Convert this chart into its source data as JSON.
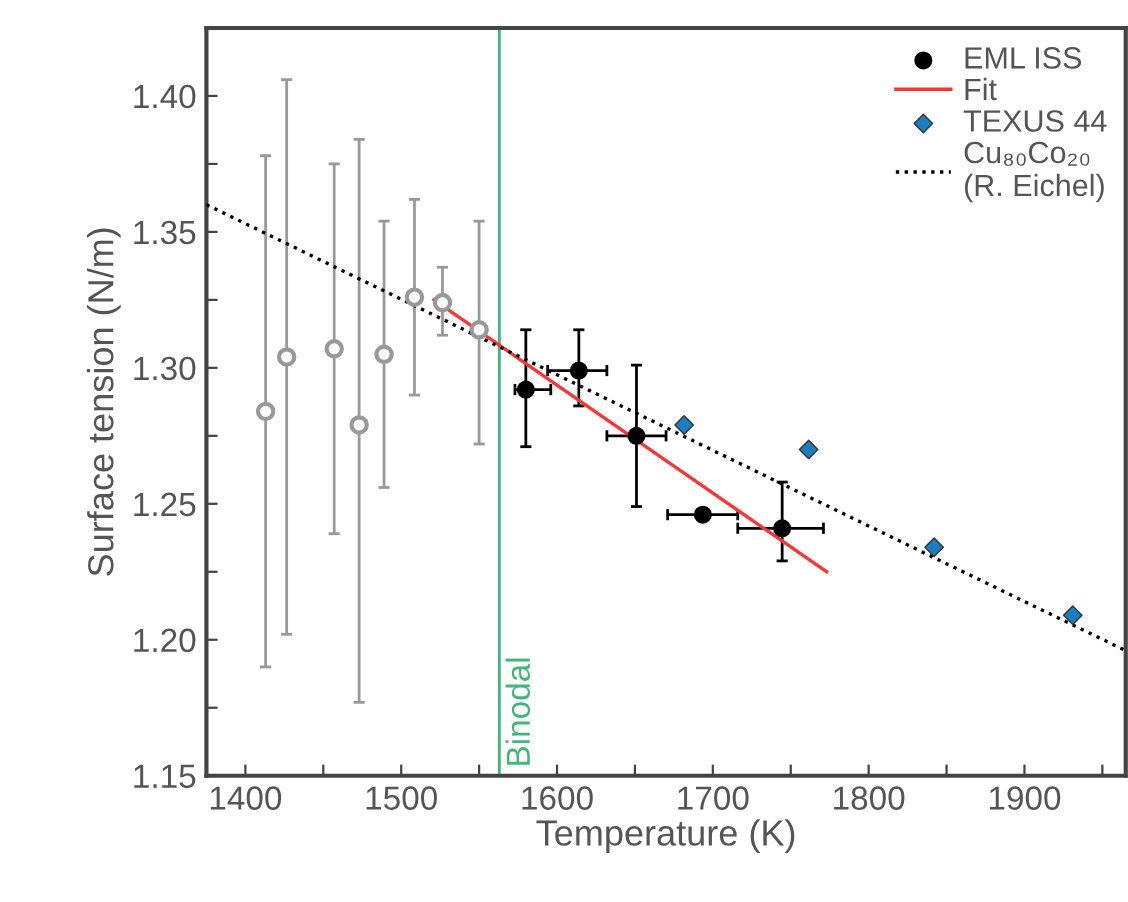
{
  "chart_data": {
    "type": "scatter",
    "xlabel": "Temperature (K)",
    "ylabel": "Surface tension (N/m)",
    "xlim": [
      1375,
      1965
    ],
    "xticks": [
      1400,
      {
        "value": 1450,
        "label": null
      },
      1500,
      {
        "value": 1550,
        "label": null
      },
      1600,
      {
        "value": 1650,
        "label": null
      },
      1700,
      {
        "value": 1750,
        "label": null
      },
      1800,
      {
        "value": 1850,
        "label": null
      },
      1900,
      {
        "value": 1950,
        "label": null
      }
    ],
    "ylim": [
      1.15,
      1.425
    ],
    "yticks": [
      {
        "value": 1.15,
        "label": "1.15"
      },
      {
        "value": 1.175,
        "label": null
      },
      {
        "value": 1.2,
        "label": "1.20"
      },
      {
        "value": 1.225,
        "label": null
      },
      {
        "value": 1.25,
        "label": "1.25"
      },
      {
        "value": 1.275,
        "label": null
      },
      {
        "value": 1.3,
        "label": "1.30"
      },
      {
        "value": 1.325,
        "label": null
      },
      {
        "value": 1.35,
        "label": "1.35"
      },
      {
        "value": 1.375,
        "label": null
      },
      {
        "value": 1.4,
        "label": "1.40"
      },
      {
        "value": 1.425,
        "label": null
      }
    ],
    "grid": false,
    "legend": "top right",
    "marker": "circle",
    "ref_lines": [
      {
        "axis": "x",
        "value": 1563,
        "label": "Binodal",
        "color": "#3cb878"
      }
    ],
    "series": [
      {
        "color": "#999999",
        "x": [
          1413,
          1426.5,
          1457,
          1473,
          1489,
          1508.5,
          1526.5,
          1550
        ],
        "values": [
          1.284,
          1.304,
          1.307,
          1.279,
          1.305,
          1.326,
          1.324,
          1.314
        ],
        "errors": [
          [
            1.19,
            1.378
          ],
          [
            1.202,
            1.406
          ],
          [
            1.239,
            1.375
          ],
          [
            1.177,
            1.384
          ],
          [
            1.256,
            1.354
          ],
          [
            1.29,
            1.362
          ],
          [
            1.312,
            1.337
          ],
          [
            1.272,
            1.354
          ]
        ]
      },
      {
        "name": "EML ISS",
        "color": "#000000",
        "x": [
          1580,
          1614,
          1651,
          1693.6,
          1744.5
        ],
        "values": [
          1.292,
          1.299,
          1.275,
          1.246,
          1.241
        ],
        "errors": [
          [
            1.271,
            1.314
          ],
          [
            1.286,
            1.314
          ],
          [
            1.249,
            1.301
          ],
          null,
          [
            1.229,
            1.258
          ]
        ],
        "xerrors": [
          [
            1573,
            1596
          ],
          [
            1594,
            1632
          ],
          [
            1632,
            1670
          ],
          [
            1671,
            1716
          ],
          [
            1716,
            1771
          ]
        ]
      },
      {
        "type": "line",
        "name": "Fit",
        "color": "#ff3333",
        "line_style": "solid",
        "marker": "none",
        "x": [
          1521,
          1773
        ],
        "values": [
          1.325,
          1.225
        ]
      },
      {
        "name": "TEXUS 44",
        "color": "#1a7fc0",
        "marker": "diamond",
        "x": [
          1681.6,
          1761.5,
          1842,
          1931
        ],
        "values": [
          1.279,
          1.27,
          1.234,
          1.209
        ]
      },
      {
        "type": "line",
        "name": "Cu₈₀Co₂₀\n(R. Eichel)",
        "color": "#000000",
        "line_style": "dotted",
        "marker": "none",
        "x": [
          1375,
          1965
        ],
        "values": [
          1.36,
          1.196
        ]
      }
    ]
  }
}
